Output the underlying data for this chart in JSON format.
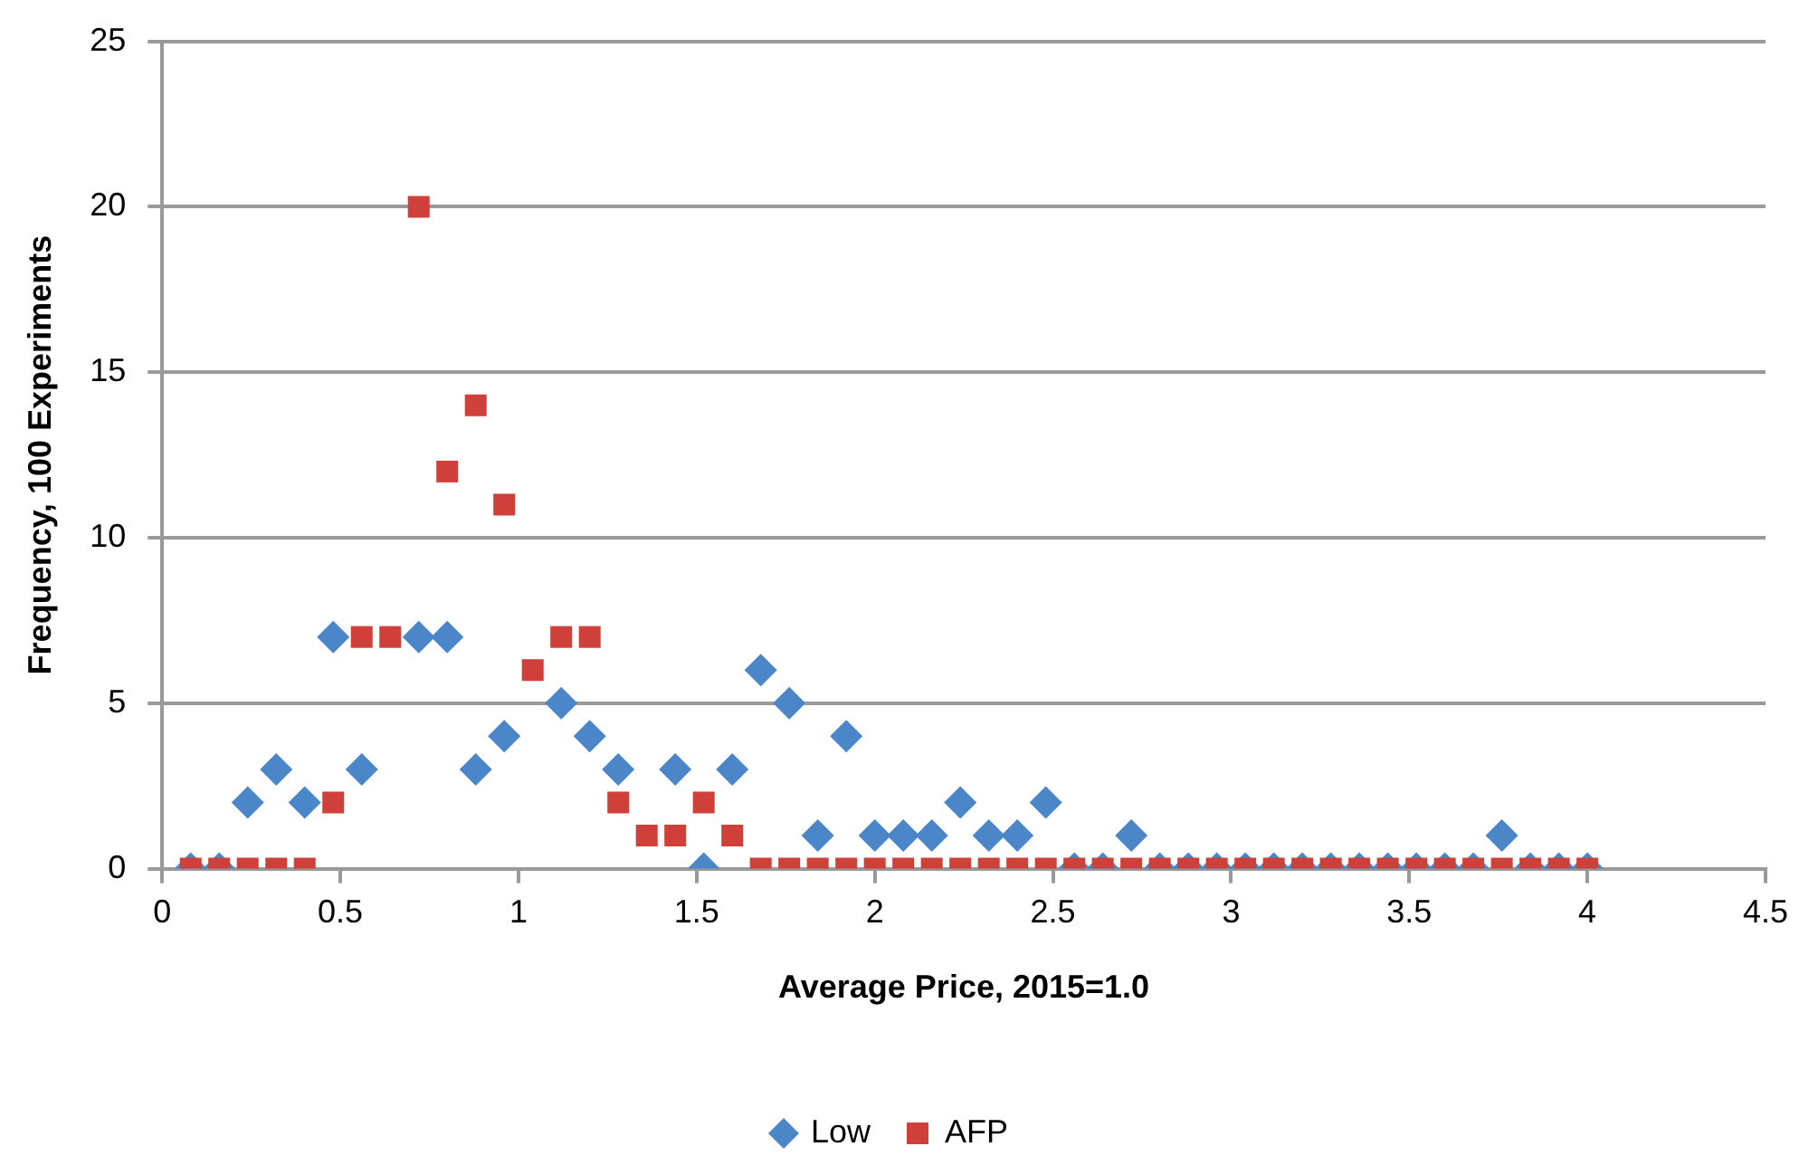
{
  "chart_data": {
    "type": "scatter",
    "xlabel": "Average Price, 2015=1.0",
    "ylabel": "Frequency, 100 Experiments",
    "x": [
      0.08,
      0.16,
      0.24,
      0.32,
      0.4,
      0.48,
      0.56,
      0.64,
      0.72,
      0.8,
      0.88,
      0.96,
      1.04,
      1.12,
      1.2,
      1.28,
      1.36,
      1.44,
      1.52,
      1.6,
      1.68,
      1.76,
      1.84,
      1.92,
      2.0,
      2.08,
      2.16,
      2.24,
      2.32,
      2.4,
      2.48,
      2.56,
      2.64,
      2.72,
      2.8,
      2.88,
      2.96,
      3.04,
      3.12,
      3.2,
      3.28,
      3.36,
      3.44,
      3.52,
      3.6,
      3.68,
      3.76,
      3.84,
      3.92,
      4.0
    ],
    "series": [
      {
        "name": "Low",
        "color": "#4a86c8",
        "marker": "diamond",
        "values": [
          0,
          0,
          2,
          3,
          2,
          7,
          3,
          null,
          7,
          7,
          3,
          4,
          null,
          5,
          4,
          3,
          null,
          3,
          0,
          3,
          6,
          5,
          1,
          4,
          1,
          1,
          1,
          2,
          1,
          1,
          2,
          0,
          0,
          1,
          0,
          0,
          0,
          0,
          0,
          0,
          0,
          0,
          0,
          0,
          0,
          0,
          1,
          0,
          0,
          0
        ]
      },
      {
        "name": "AFP",
        "color": "#d0403a",
        "marker": "square",
        "values": [
          0,
          0,
          0,
          0,
          0,
          2,
          7,
          7,
          20,
          12,
          14,
          11,
          6,
          7,
          7,
          2,
          1,
          1,
          2,
          1,
          0,
          0,
          0,
          0,
          0,
          0,
          0,
          0,
          0,
          0,
          0,
          0,
          0,
          0,
          0,
          0,
          0,
          0,
          0,
          0,
          0,
          0,
          0,
          0,
          0,
          0,
          0,
          0,
          0,
          0
        ]
      }
    ],
    "xlim": [
      0,
      4.5
    ],
    "xticks": [
      0,
      0.5,
      1,
      1.5,
      2,
      2.5,
      3,
      3.5,
      4,
      4.5
    ],
    "ylim": [
      0,
      25
    ],
    "yticks": [
      0,
      5,
      10,
      15,
      20,
      25
    ],
    "grid": "y",
    "legend": "bottom"
  }
}
